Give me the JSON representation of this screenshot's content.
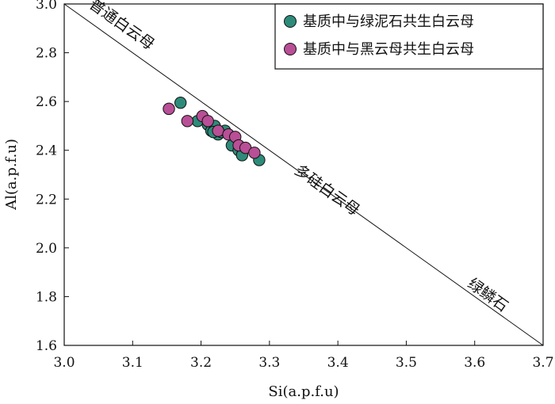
{
  "chart_data": {
    "type": "scatter",
    "title": "",
    "xlabel": "Si(a.p.f.u)",
    "ylabel": "Al(a.p.f.u)",
    "xlim": [
      3.0,
      3.7
    ],
    "ylim": [
      1.6,
      3.0
    ],
    "xticks": [
      "3.0",
      "3.1",
      "3.2",
      "3.3",
      "3.4",
      "3.5",
      "3.6",
      "3.7"
    ],
    "yticks": [
      "1.6",
      "1.8",
      "2.0",
      "2.2",
      "2.4",
      "2.6",
      "2.8",
      "3.0"
    ],
    "grid": false,
    "legend_position": "top-right",
    "series": [
      {
        "name": "基质中与绿泥石共生白云母",
        "color": "#2e8b7a",
        "points": [
          [
            3.17,
            2.595
          ],
          [
            3.195,
            2.52
          ],
          [
            3.21,
            2.505
          ],
          [
            3.215,
            2.48
          ],
          [
            3.22,
            2.5
          ],
          [
            3.225,
            2.465
          ],
          [
            3.23,
            2.475
          ],
          [
            3.235,
            2.48
          ],
          [
            3.218,
            2.475
          ],
          [
            3.245,
            2.42
          ],
          [
            3.255,
            2.4
          ],
          [
            3.26,
            2.38
          ],
          [
            3.285,
            2.36
          ]
        ]
      },
      {
        "name": "基质中与黑云母共生白云母",
        "color": "#b94f96",
        "points": [
          [
            3.153,
            2.57
          ],
          [
            3.18,
            2.52
          ],
          [
            3.202,
            2.54
          ],
          [
            3.21,
            2.52
          ],
          [
            3.225,
            2.48
          ],
          [
            3.24,
            2.465
          ],
          [
            3.25,
            2.455
          ],
          [
            3.255,
            2.42
          ],
          [
            3.265,
            2.41
          ],
          [
            3.278,
            2.39
          ]
        ]
      }
    ],
    "reference_line": {
      "from": [
        3.0,
        3.0
      ],
      "to": [
        3.7,
        1.6
      ],
      "labels": [
        {
          "text": "普通白云母",
          "at": [
            3.08,
            2.9
          ]
        },
        {
          "text": "多硅白云母",
          "at": [
            3.38,
            2.22
          ]
        },
        {
          "text": "绿鳞石",
          "at": [
            3.615,
            1.79
          ]
        }
      ]
    }
  }
}
